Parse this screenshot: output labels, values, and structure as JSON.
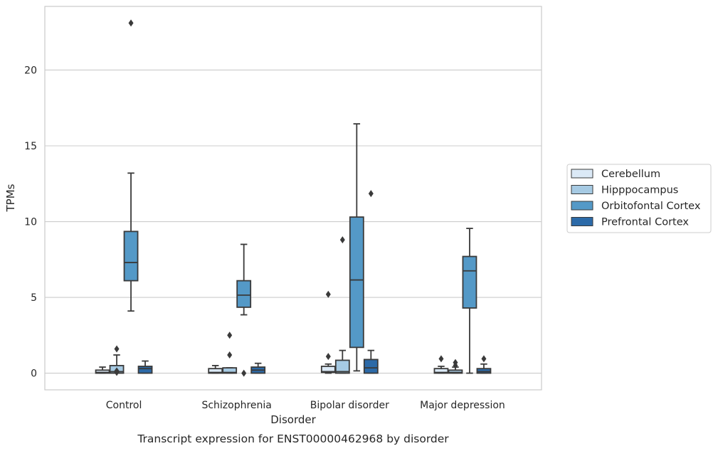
{
  "chart_data": {
    "type": "box",
    "xlabel": "Disorder",
    "ylabel": "TPMs",
    "caption": "Transcript expression for ENST00000462968 by disorder",
    "ylim": [
      -1.1,
      24.2
    ],
    "yticks": [
      0,
      5,
      10,
      15,
      20
    ],
    "grid": "horizontal",
    "legend_position": "right",
    "categories": [
      "Control",
      "Schizophrenia",
      "Bipolar disorder",
      "Major depression"
    ],
    "series": [
      {
        "name": "Cerebellum",
        "color": "#dbe9f6",
        "boxes": [
          {
            "whislo": 0.0,
            "q1": 0.0,
            "med": 0.05,
            "q3": 0.2,
            "whishi": 0.4,
            "fliers": []
          },
          {
            "whislo": 0.0,
            "q1": 0.0,
            "med": 0.05,
            "q3": 0.3,
            "whishi": 0.5,
            "fliers": []
          },
          {
            "whislo": 0.0,
            "q1": 0.05,
            "med": 0.1,
            "q3": 0.45,
            "whishi": 0.6,
            "fliers": [
              1.1,
              5.2
            ]
          },
          {
            "whislo": 0.0,
            "q1": 0.0,
            "med": 0.05,
            "q3": 0.3,
            "whishi": 0.45,
            "fliers": [
              0.95
            ]
          }
        ]
      },
      {
        "name": "Hipppocampus",
        "color": "#a6cae3",
        "boxes": [
          {
            "whislo": 0.0,
            "q1": 0.0,
            "med": 0.1,
            "q3": 0.5,
            "whishi": 1.2,
            "fliers": [
              1.6,
              0.05,
              0.15
            ]
          },
          {
            "whislo": 0.0,
            "q1": 0.0,
            "med": 0.05,
            "q3": 0.35,
            "whishi": 0.35,
            "fliers": [
              1.2,
              2.5
            ]
          },
          {
            "whislo": 0.0,
            "q1": 0.0,
            "med": 0.1,
            "q3": 0.85,
            "whishi": 1.5,
            "fliers": [
              8.8
            ]
          },
          {
            "whislo": 0.0,
            "q1": 0.0,
            "med": 0.05,
            "q3": 0.2,
            "whishi": 0.4,
            "fliers": [
              0.5,
              0.7
            ]
          }
        ]
      },
      {
        "name": "Orbitofontal Cortex",
        "color": "#5499c7",
        "boxes": [
          {
            "whislo": 4.1,
            "q1": 6.1,
            "med": 7.3,
            "q3": 9.35,
            "whishi": 13.2,
            "fliers": [
              23.1
            ]
          },
          {
            "whislo": 3.85,
            "q1": 4.35,
            "med": 5.15,
            "q3": 6.1,
            "whishi": 8.5,
            "fliers": [
              0.0
            ]
          },
          {
            "whislo": 0.15,
            "q1": 1.7,
            "med": 6.15,
            "q3": 10.3,
            "whishi": 16.45,
            "fliers": []
          },
          {
            "whislo": 0.0,
            "q1": 4.3,
            "med": 6.75,
            "q3": 7.7,
            "whishi": 9.55,
            "fliers": []
          }
        ]
      },
      {
        "name": "Prefrontal Cortex",
        "color": "#2c6aa8",
        "boxes": [
          {
            "whislo": 0.0,
            "q1": 0.0,
            "med": 0.3,
            "q3": 0.45,
            "whishi": 0.8,
            "fliers": []
          },
          {
            "whislo": 0.0,
            "q1": 0.0,
            "med": 0.2,
            "q3": 0.4,
            "whishi": 0.65,
            "fliers": []
          },
          {
            "whislo": 0.0,
            "q1": 0.0,
            "med": 0.35,
            "q3": 0.9,
            "whishi": 1.5,
            "fliers": [
              11.85
            ]
          },
          {
            "whislo": 0.0,
            "q1": 0.0,
            "med": 0.1,
            "q3": 0.3,
            "whishi": 0.6,
            "fliers": [
              0.95
            ]
          }
        ]
      }
    ]
  }
}
